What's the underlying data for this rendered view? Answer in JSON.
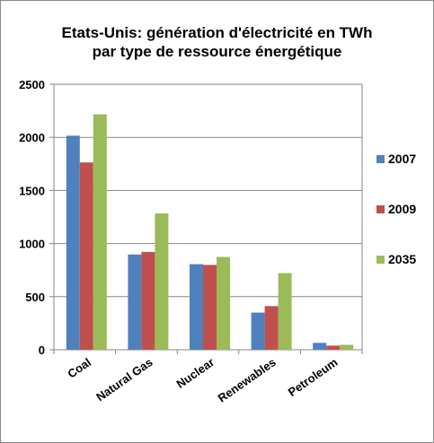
{
  "chart_data": {
    "type": "bar",
    "title_line1": "Etats-Unis: génération d'électricité en TWh",
    "title_line2": "par type de ressource énergétique",
    "categories": [
      "Coal",
      "Natural Gas",
      "Nuclear",
      "Renewables",
      "Petroleum"
    ],
    "series": [
      {
        "name": "2007",
        "color": "#4F81BD",
        "values": [
          2016,
          897,
          806,
          350,
          65
        ]
      },
      {
        "name": "2009",
        "color": "#C0504D",
        "values": [
          1764,
          921,
          799,
          411,
          39
        ]
      },
      {
        "name": "2035",
        "color": "#9BBB59",
        "values": [
          2217,
          1284,
          874,
          722,
          46
        ]
      }
    ],
    "ylim": [
      0,
      2500
    ],
    "yticks": [
      "0",
      "500",
      "1000",
      "1500",
      "2000",
      "2500"
    ],
    "grid": true,
    "legend_position": "right"
  }
}
